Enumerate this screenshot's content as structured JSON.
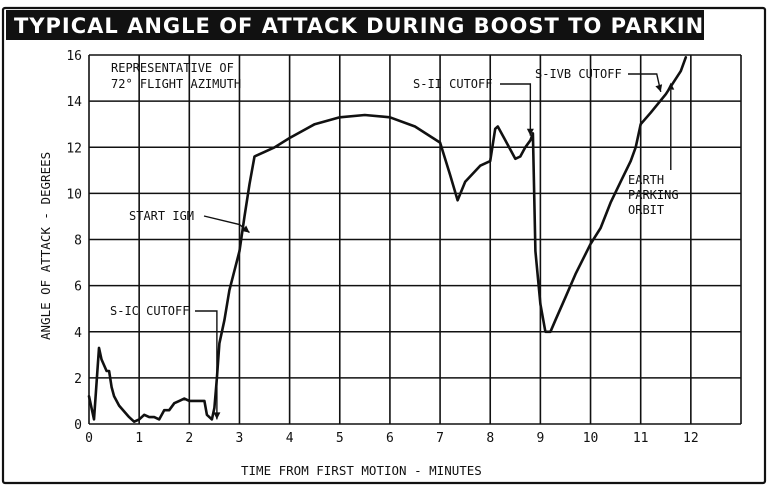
{
  "chart_data": {
    "type": "line",
    "title": "TYPICAL ANGLE OF ATTACK DURING BOOST TO PARKING ORBIT",
    "xlabel": "TIME FROM FIRST MOTION - MINUTES",
    "ylabel": "ANGLE OF ATTACK - DEGREES",
    "xlim": [
      0,
      13
    ],
    "ylim": [
      0,
      16
    ],
    "grid": true,
    "x_ticks": [
      "0",
      "1",
      "2",
      "3",
      "4",
      "5",
      "6",
      "7",
      "8",
      "9",
      "10",
      "11",
      "12"
    ],
    "y_ticks": [
      "0",
      "2",
      "4",
      "6",
      "8",
      "10",
      "12",
      "14",
      "16"
    ],
    "note": "REPRESENTATIVE OF\n72° FLIGHT AZIMUTH",
    "series": [
      {
        "x": [
          0.0,
          0.1,
          0.2,
          0.25,
          0.35,
          0.4,
          0.45,
          0.5,
          0.6,
          0.8,
          0.9,
          1.0,
          1.1,
          1.2,
          1.3,
          1.4,
          1.5,
          1.6,
          1.7,
          1.8,
          1.9,
          2.0,
          2.1,
          2.2,
          2.3,
          2.35,
          2.45,
          2.5,
          2.55,
          2.6,
          2.7,
          2.8,
          3.0,
          3.1,
          3.2,
          3.3,
          3.4,
          3.5,
          3.7,
          4.0,
          4.5,
          5.0,
          5.5,
          6.0,
          6.5,
          7.0,
          7.2,
          7.35,
          7.5,
          7.8,
          8.0,
          8.1,
          8.15,
          8.3,
          8.5,
          8.6,
          8.7,
          8.8,
          8.85,
          8.9,
          9.0,
          9.1,
          9.2,
          9.3,
          9.5,
          9.7,
          10.0,
          10.2,
          10.4,
          10.6,
          10.8,
          10.9,
          11.0,
          11.2,
          11.5,
          11.8,
          11.9
        ],
        "y": [
          1.2,
          0.2,
          3.3,
          2.8,
          2.3,
          2.3,
          1.6,
          1.2,
          0.8,
          0.3,
          0.1,
          0.2,
          0.4,
          0.3,
          0.3,
          0.2,
          0.6,
          0.6,
          0.9,
          1.0,
          1.1,
          1.0,
          1.0,
          1.0,
          1.0,
          0.4,
          0.2,
          0.7,
          2.0,
          3.5,
          4.5,
          5.8,
          7.5,
          9.0,
          10.4,
          11.6,
          11.7,
          11.8,
          12.0,
          12.4,
          13.0,
          13.3,
          13.4,
          13.3,
          12.9,
          12.2,
          10.8,
          9.7,
          10.5,
          11.2,
          11.4,
          12.8,
          12.9,
          12.3,
          11.5,
          11.6,
          12.0,
          12.3,
          12.6,
          7.5,
          5.2,
          4.0,
          4.0,
          4.5,
          5.5,
          6.5,
          7.8,
          8.5,
          9.6,
          10.5,
          11.4,
          12.0,
          13.0,
          13.5,
          14.3,
          15.3,
          15.9
        ]
      }
    ],
    "annotations": [
      {
        "text": "START IGM",
        "x": 3.2,
        "y": 8.3
      },
      {
        "text": "S-IC CUTOFF",
        "x": 2.55,
        "y": 0.2
      },
      {
        "text": "S-II CUTOFF",
        "x": 8.8,
        "y": 12.5
      },
      {
        "text": "S-IVB CUTOFF",
        "x": 11.4,
        "y": 14.4
      },
      {
        "text": "EARTH\nPARKING\nORBIT",
        "x": 11.6,
        "y": 14.8
      }
    ]
  }
}
